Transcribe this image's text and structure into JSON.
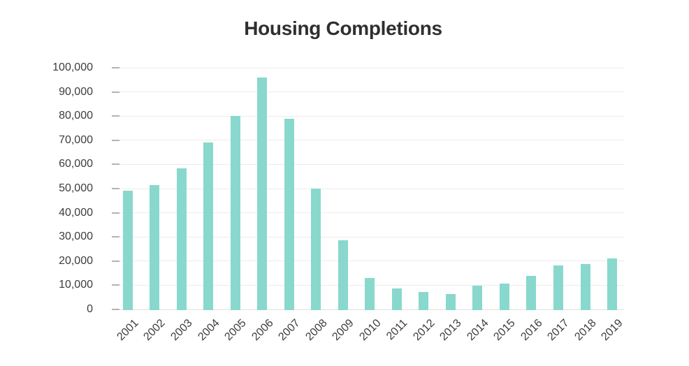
{
  "chart_data": {
    "type": "bar",
    "title": "Housing Completions",
    "categories": [
      "2001",
      "2002",
      "2003",
      "2004",
      "2005",
      "2006",
      "2007",
      "2008",
      "2009",
      "2010",
      "2011",
      "2012",
      "2013",
      "2014",
      "2015",
      "2016",
      "2017",
      "2018",
      "2019"
    ],
    "values": [
      49000,
      51500,
      58500,
      69000,
      80000,
      96000,
      79000,
      50000,
      28500,
      13000,
      8800,
      7300,
      6300,
      9700,
      10800,
      14000,
      18100,
      18900,
      21200
    ],
    "xlabel": "",
    "ylabel": "",
    "ylim": [
      0,
      100000
    ],
    "yticks": [
      0,
      10000,
      20000,
      30000,
      40000,
      50000,
      60000,
      70000,
      80000,
      90000,
      100000
    ],
    "ytick_labels": [
      "0",
      "10,000",
      "20,000",
      "30,000",
      "40,000",
      "50,000",
      "60,000",
      "70,000",
      "80,000",
      "90,000",
      "100,000"
    ],
    "grid": true,
    "legend": "none",
    "colors": {
      "bar": "#88D8CD",
      "gridline": "#ECECEC",
      "axis_line": "#E3E3E3",
      "tick": "#B3B3B3",
      "axis_text": "#3d3d3d",
      "title_text": "#2f2f2f"
    }
  }
}
